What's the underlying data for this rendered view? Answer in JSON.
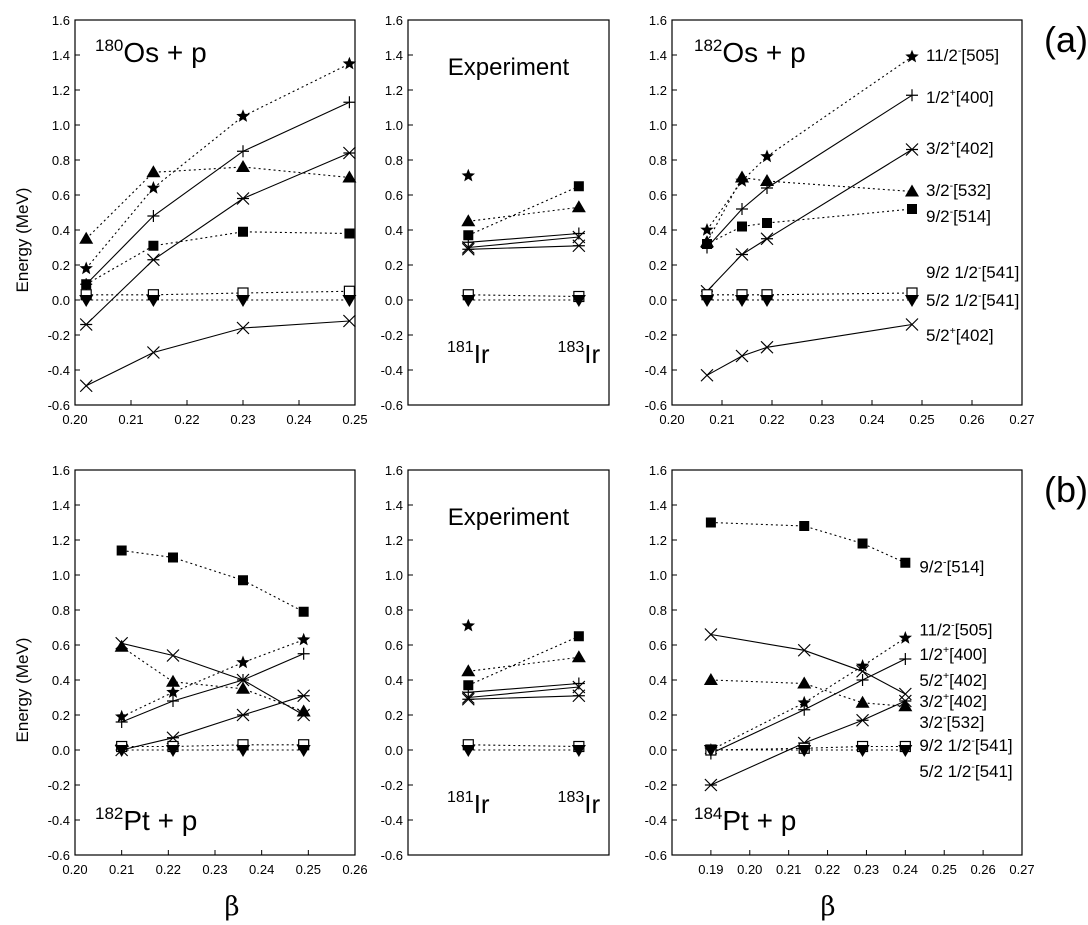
{
  "labels": {
    "ylabel": "Energy (MeV)",
    "xlabel": "β",
    "row_a": "(a)",
    "row_b": "(b)"
  },
  "chart_data": [
    {
      "type": "line",
      "id": "a-180os",
      "row": "a",
      "col": 0,
      "title_sup": "180",
      "title_main": "Os + p",
      "xlim": [
        0.2,
        0.25
      ],
      "ylim": [
        -0.6,
        1.6
      ],
      "xticks": [
        "0.20",
        "0.21",
        "0.22",
        "0.23",
        "0.24",
        "0.25"
      ],
      "x": [
        0.202,
        0.214,
        0.23,
        0.249
      ],
      "series": [
        {
          "marker": "star",
          "dash": true,
          "values": [
            0.18,
            0.64,
            1.05,
            1.35
          ]
        },
        {
          "marker": "plus",
          "dash": false,
          "values": [
            0.09,
            0.48,
            0.85,
            1.13
          ]
        },
        {
          "marker": "triangle",
          "dash": true,
          "values": [
            0.35,
            0.73,
            0.76,
            0.7
          ]
        },
        {
          "marker": "asterisk",
          "dash": false,
          "values": [
            -0.14,
            0.23,
            0.58,
            0.84
          ]
        },
        {
          "marker": "square",
          "dash": true,
          "values": [
            0.09,
            0.31,
            0.39,
            0.38
          ]
        },
        {
          "marker": "open-square",
          "dash": true,
          "values": [
            0.03,
            0.03,
            0.04,
            0.05
          ]
        },
        {
          "marker": "triangle-down",
          "dash": true,
          "values": [
            0.0,
            0.0,
            0.0,
            0.0
          ]
        },
        {
          "marker": "cross",
          "dash": false,
          "values": [
            -0.49,
            -0.3,
            -0.16,
            -0.12
          ]
        }
      ],
      "state_labels": []
    },
    {
      "type": "line",
      "id": "a-exp",
      "row": "a",
      "col": 1,
      "title_sup": "",
      "title_main": "Experiment",
      "xlim": [
        0,
        1
      ],
      "ylim": [
        -0.6,
        1.6
      ],
      "xticks": [],
      "x": [
        0.3,
        0.85
      ],
      "iso_labels": [
        {
          "sup": "181",
          "main": "Ir"
        },
        {
          "sup": "183",
          "main": "Ir"
        }
      ],
      "series": [
        {
          "marker": "star",
          "dash": true,
          "values": [
            0.71,
            null
          ]
        },
        {
          "marker": "square",
          "dash": true,
          "values": [
            0.37,
            0.65
          ]
        },
        {
          "marker": "triangle",
          "dash": true,
          "values": [
            0.45,
            0.53
          ]
        },
        {
          "marker": "plus",
          "dash": false,
          "values": [
            0.33,
            0.38
          ]
        },
        {
          "marker": "cross",
          "dash": false,
          "values": [
            0.3,
            0.36
          ]
        },
        {
          "marker": "asterisk",
          "dash": false,
          "values": [
            0.29,
            0.31
          ]
        },
        {
          "marker": "open-square",
          "dash": true,
          "values": [
            0.03,
            0.02
          ]
        },
        {
          "marker": "triangle-down",
          "dash": true,
          "values": [
            0.0,
            0.0
          ]
        }
      ],
      "state_labels": []
    },
    {
      "type": "line",
      "id": "a-182os",
      "row": "a",
      "col": 2,
      "title_sup": "182",
      "title_main": "Os + p",
      "xlim": [
        0.2,
        0.27
      ],
      "ylim": [
        -0.6,
        1.6
      ],
      "xticks": [
        "0.20",
        "0.21",
        "0.22",
        "0.23",
        "0.24",
        "0.25",
        "0.26",
        "0.27"
      ],
      "x": [
        0.207,
        0.214,
        0.219,
        0.248
      ],
      "series": [
        {
          "marker": "star",
          "dash": true,
          "values": [
            0.4,
            0.68,
            0.82,
            1.39
          ]
        },
        {
          "marker": "plus",
          "dash": false,
          "values": [
            0.3,
            0.52,
            0.64,
            1.17
          ]
        },
        {
          "marker": "asterisk",
          "dash": false,
          "values": [
            0.05,
            0.26,
            0.35,
            0.86
          ]
        },
        {
          "marker": "triangle",
          "dash": true,
          "values": [
            0.33,
            0.7,
            0.68,
            0.62
          ]
        },
        {
          "marker": "square",
          "dash": true,
          "values": [
            0.32,
            0.42,
            0.44,
            0.52
          ]
        },
        {
          "marker": "open-square",
          "dash": true,
          "values": [
            0.03,
            0.03,
            0.03,
            0.04
          ]
        },
        {
          "marker": "triangle-down",
          "dash": true,
          "values": [
            0.0,
            0.0,
            0.0,
            0.0
          ]
        },
        {
          "marker": "cross",
          "dash": false,
          "values": [
            -0.43,
            -0.32,
            -0.27,
            -0.14
          ]
        }
      ],
      "state_labels": [
        {
          "y": 1.4,
          "pre": "11/2",
          "sup": "-",
          "post": "[505]"
        },
        {
          "y": 1.16,
          "pre": "1/2",
          "sup": "+",
          "post": "[400]"
        },
        {
          "y": 0.87,
          "pre": "3/2",
          "sup": "+",
          "post": "[402]"
        },
        {
          "y": 0.63,
          "pre": "3/2",
          "sup": "-",
          "post": "[532]"
        },
        {
          "y": 0.48,
          "pre": "9/2",
          "sup": "-",
          "post": "[514]"
        },
        {
          "y": 0.16,
          "pre": "9/2 1/2",
          "sup": "-",
          "post": "[541]"
        },
        {
          "y": 0.0,
          "pre": "5/2 1/2",
          "sup": "-",
          "post": "[541]"
        },
        {
          "y": -0.2,
          "pre": "5/2",
          "sup": "+",
          "post": "[402]"
        }
      ]
    },
    {
      "type": "line",
      "id": "b-182pt",
      "row": "b",
      "col": 0,
      "title_sup": "182",
      "title_main": "Pt + p",
      "xlim": [
        0.2,
        0.26
      ],
      "ylim": [
        -0.6,
        1.6
      ],
      "xticks": [
        "0.20",
        "0.21",
        "0.22",
        "0.23",
        "0.24",
        "0.25",
        "0.26"
      ],
      "x": [
        0.21,
        0.221,
        0.236,
        0.249
      ],
      "series": [
        {
          "marker": "square",
          "dash": true,
          "values": [
            1.14,
            1.1,
            0.97,
            0.79
          ]
        },
        {
          "marker": "cross",
          "dash": false,
          "values": [
            0.61,
            0.54,
            0.4,
            0.2
          ]
        },
        {
          "marker": "triangle",
          "dash": true,
          "values": [
            0.59,
            0.39,
            0.35,
            0.22
          ]
        },
        {
          "marker": "star",
          "dash": true,
          "values": [
            0.19,
            0.33,
            0.5,
            0.63
          ]
        },
        {
          "marker": "plus",
          "dash": false,
          "values": [
            0.16,
            0.28,
            0.4,
            0.55
          ]
        },
        {
          "marker": "asterisk",
          "dash": false,
          "values": [
            0.0,
            0.07,
            0.2,
            0.31
          ]
        },
        {
          "marker": "open-square",
          "dash": true,
          "values": [
            0.02,
            0.02,
            0.03,
            0.03
          ]
        },
        {
          "marker": "triangle-down",
          "dash": true,
          "values": [
            0.0,
            0.0,
            0.0,
            0.0
          ]
        }
      ],
      "state_labels": []
    },
    {
      "type": "line",
      "id": "b-exp",
      "row": "b",
      "col": 1,
      "title_sup": "",
      "title_main": "Experiment",
      "xlim": [
        0,
        1
      ],
      "ylim": [
        -0.6,
        1.6
      ],
      "xticks": [],
      "x": [
        0.3,
        0.85
      ],
      "iso_labels": [
        {
          "sup": "181",
          "main": "Ir"
        },
        {
          "sup": "183",
          "main": "Ir"
        }
      ],
      "series": [
        {
          "marker": "star",
          "dash": true,
          "values": [
            0.71,
            null
          ]
        },
        {
          "marker": "square",
          "dash": true,
          "values": [
            0.37,
            0.65
          ]
        },
        {
          "marker": "triangle",
          "dash": true,
          "values": [
            0.45,
            0.53
          ]
        },
        {
          "marker": "plus",
          "dash": false,
          "values": [
            0.33,
            0.38
          ]
        },
        {
          "marker": "cross",
          "dash": false,
          "values": [
            0.3,
            0.36
          ]
        },
        {
          "marker": "asterisk",
          "dash": false,
          "values": [
            0.29,
            0.31
          ]
        },
        {
          "marker": "open-square",
          "dash": true,
          "values": [
            0.03,
            0.02
          ]
        },
        {
          "marker": "triangle-down",
          "dash": true,
          "values": [
            0.0,
            0.0
          ]
        }
      ],
      "state_labels": []
    },
    {
      "type": "line",
      "id": "b-184pt",
      "row": "b",
      "col": 2,
      "title_sup": "184",
      "title_main": "Pt + p",
      "xlim": [
        0.18,
        0.27
      ],
      "ylim": [
        -0.6,
        1.6
      ],
      "xticks": [
        "0.19",
        "0.20",
        "0.21",
        "0.22",
        "0.23",
        "0.24",
        "0.25",
        "0.26",
        "0.27"
      ],
      "x": [
        0.19,
        0.214,
        0.229,
        0.24
      ],
      "series": [
        {
          "marker": "square",
          "dash": true,
          "values": [
            1.3,
            1.28,
            1.18,
            1.07
          ]
        },
        {
          "marker": "cross",
          "dash": false,
          "values": [
            0.66,
            0.57,
            0.45,
            0.32
          ]
        },
        {
          "marker": "triangle",
          "dash": true,
          "values": [
            0.4,
            0.38,
            0.27,
            0.25
          ]
        },
        {
          "marker": "star",
          "dash": true,
          "values": [
            0.0,
            0.27,
            0.48,
            0.64
          ]
        },
        {
          "marker": "plus",
          "dash": false,
          "values": [
            -0.02,
            0.23,
            0.4,
            0.52
          ]
        },
        {
          "marker": "asterisk",
          "dash": false,
          "values": [
            -0.2,
            0.04,
            0.17,
            0.28
          ]
        },
        {
          "marker": "open-square",
          "dash": true,
          "values": [
            0.0,
            0.01,
            0.02,
            0.02
          ]
        },
        {
          "marker": "triangle-down",
          "dash": true,
          "values": [
            0.0,
            0.0,
            0.0,
            0.0
          ]
        }
      ],
      "state_labels": [
        {
          "y": 1.05,
          "pre": "9/2",
          "sup": "-",
          "post": "[514]"
        },
        {
          "y": 0.69,
          "pre": "11/2",
          "sup": "-",
          "post": "[505]"
        },
        {
          "y": 0.55,
          "pre": "1/2",
          "sup": "+",
          "post": "[400]"
        },
        {
          "y": 0.4,
          "pre": "5/2",
          "sup": "+",
          "post": "[402]"
        },
        {
          "y": 0.28,
          "pre": "3/2",
          "sup": "+",
          "post": "[402]"
        },
        {
          "y": 0.16,
          "pre": "3/2",
          "sup": "-",
          "post": "[532]"
        },
        {
          "y": 0.03,
          "pre": "9/2 1/2",
          "sup": "-",
          "post": "[541]"
        },
        {
          "y": -0.12,
          "pre": "5/2 1/2",
          "sup": "-",
          "post": "[541]"
        }
      ]
    }
  ]
}
